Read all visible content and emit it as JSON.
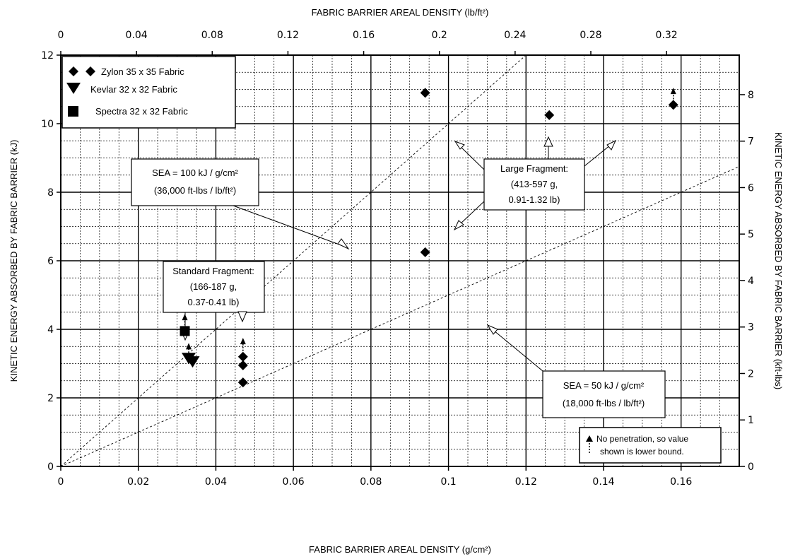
{
  "chart_data": {
    "type": "scatter",
    "title": "",
    "top_axis_label": "FABRIC BARRIER AREAL DENSITY (lb/ft²)",
    "bottom_axis_label": "FABRIC BARRIER AREAL DENSITY (g/cm²)",
    "left_axis_label": "KINETIC ENERGY ABSORBED BY FABRIC BARRIER (kJ)",
    "right_axis_label": "KINETIC ENERGY ABSORBED BY FABRIC BARRIER (kft-lbs)",
    "xlim": [
      0,
      0.175
    ],
    "ylim": [
      0,
      12
    ],
    "x_ticks": [
      "0",
      "0.02",
      "0.04",
      "0.06",
      "0.08",
      "0.1",
      "0.12",
      "0.14",
      "0.16"
    ],
    "y_ticks": [
      "0",
      "2",
      "4",
      "6",
      "8",
      "10",
      "12"
    ],
    "top_ticks": [
      "0",
      "0.04",
      "0.08",
      "0.12",
      "0.16",
      "0.2",
      "0.24",
      "0.28",
      "0.32"
    ],
    "right_ticks": [
      "0",
      "1",
      "2",
      "3",
      "4",
      "5",
      "6",
      "7",
      "8"
    ],
    "grid": true,
    "legend_position": "top-left",
    "series": [
      {
        "name": "Zylon 35 x 35 Fabric",
        "marker": "diamond",
        "points": [
          {
            "x": 0.047,
            "y": 3.2
          },
          {
            "x": 0.047,
            "y": 2.95
          },
          {
            "x": 0.047,
            "y": 2.45
          },
          {
            "x": 0.094,
            "y": 10.9
          },
          {
            "x": 0.094,
            "y": 6.25
          },
          {
            "x": 0.126,
            "y": 10.25
          },
          {
            "x": 0.158,
            "y": 10.55
          }
        ]
      },
      {
        "name": "Kevlar 32 x 32 Fabric",
        "marker": "triangle-down",
        "points": [
          {
            "x": 0.033,
            "y": 3.15
          },
          {
            "x": 0.034,
            "y": 3.05
          }
        ]
      },
      {
        "name": "Spectra 32 x 32 Fabric",
        "marker": "square",
        "points": [
          {
            "x": 0.032,
            "y": 3.95
          }
        ]
      }
    ],
    "lower_bound_arrows": [
      {
        "x": 0.032,
        "y_from": 3.95,
        "y_to": 4.45
      },
      {
        "x": 0.033,
        "y_from": 3.15,
        "y_to": 3.6
      },
      {
        "x": 0.047,
        "y_from": 3.2,
        "y_to": 3.75
      },
      {
        "x": 0.158,
        "y_from": 10.55,
        "y_to": 11.05
      }
    ],
    "reference_lines": [
      {
        "slope": 100,
        "label_lines": [
          "SEA = 100 kJ / g/cm²",
          "(36,000 ft-lbs / lb/ft²)"
        ]
      },
      {
        "slope": 50,
        "label_lines": [
          "SEA = 50 kJ / g/cm²",
          "(18,000 ft-lbs / lb/ft²)"
        ]
      }
    ],
    "annotations": {
      "standard_fragment": [
        "Standard Fragment:",
        "(166-187 g,",
        "0.37-0.41 lb)"
      ],
      "large_fragment": [
        "Large Fragment:",
        "(413-597 g,",
        "0.91-1.32 lb)"
      ],
      "note": [
        "No penetration, so value",
        "shown is lower bound."
      ]
    }
  }
}
